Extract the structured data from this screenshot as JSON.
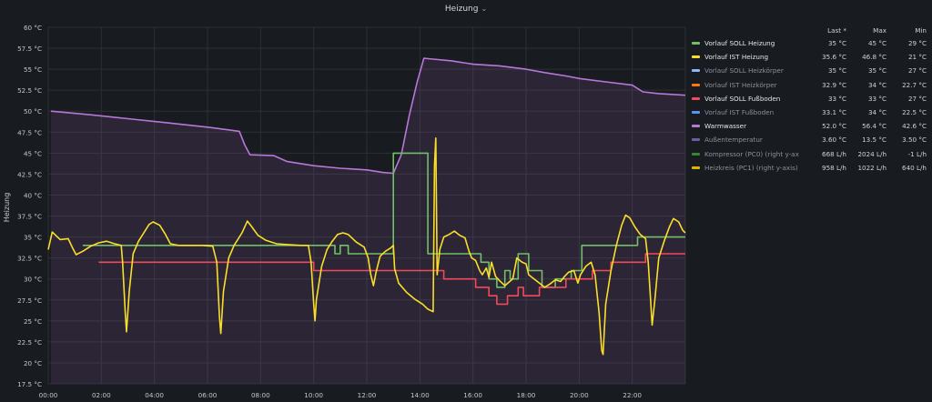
{
  "panel": {
    "title": "Heizung"
  },
  "legend": {
    "col_last": "Last *",
    "col_max": "Max",
    "col_min": "Min",
    "rows": [
      {
        "name": "Vorlauf SOLL Heizung",
        "color": "#73bf69",
        "last": "35 °C",
        "max": "45 °C",
        "min": "29 °C",
        "dim": false
      },
      {
        "name": "Vorlauf IST Heizung",
        "color": "#fade2a",
        "last": "35.6 °C",
        "max": "46.8 °C",
        "min": "21 °C",
        "dim": false
      },
      {
        "name": "Vorlauf SOLL Heizkörper",
        "color": "#8ab8ff",
        "last": "35 °C",
        "max": "35 °C",
        "min": "27 °C",
        "dim": true
      },
      {
        "name": "Vorlauf IST Heizkörper",
        "color": "#ff780a",
        "last": "32.9 °C",
        "max": "34 °C",
        "min": "22.7 °C",
        "dim": true
      },
      {
        "name": "Vorlauf SOLL Fußboden",
        "color": "#f2495c",
        "last": "33 °C",
        "max": "33 °C",
        "min": "27 °C",
        "dim": false
      },
      {
        "name": "Vorlauf IST Fußboden",
        "color": "#5794f2",
        "last": "33.1 °C",
        "max": "34 °C",
        "min": "22.5 °C",
        "dim": true
      },
      {
        "name": "Warmwasser",
        "color": "#b877d9",
        "last": "52.0 °C",
        "max": "56.4 °C",
        "min": "42.6 °C",
        "dim": false
      },
      {
        "name": "Außentemperatur",
        "color": "#705da0",
        "last": "3.60 °C",
        "max": "13.5 °C",
        "min": "3.50 °C",
        "dim": true
      },
      {
        "name": "Kompressor (PC0) (right y-axis)",
        "color": "#37872d",
        "last": "668 L/h",
        "max": "2024 L/h",
        "min": "-1 L/h",
        "dim": true
      },
      {
        "name": "Heizkreis (PC1) (right y-axis)",
        "color": "#e0b400",
        "last": "958 L/h",
        "max": "1022 L/h",
        "min": "640 L/h",
        "dim": true
      }
    ]
  },
  "chart_data": {
    "type": "line",
    "ylabel": "Heizung",
    "ylim": [
      17.5,
      60
    ],
    "xlim": [
      0,
      24
    ],
    "y_ticks": [
      "17.5 °C",
      "20 °C",
      "22.5 °C",
      "25 °C",
      "27.5 °C",
      "30 °C",
      "32.5 °C",
      "35 °C",
      "37.5 °C",
      "40 °C",
      "42.5 °C",
      "45 °C",
      "47.5 °C",
      "50 °C",
      "52.5 °C",
      "55 °C",
      "57.5 °C",
      "60 °C"
    ],
    "x_ticks": [
      "00:00",
      "02:00",
      "04:00",
      "06:00",
      "08:00",
      "10:00",
      "12:00",
      "14:00",
      "16:00",
      "18:00",
      "20:00",
      "22:00"
    ],
    "grid": true,
    "legend_position": "right",
    "series": [
      {
        "name": "Warmwasser",
        "color": "#b877d9",
        "fill": true,
        "points": [
          [
            0.1,
            50.0
          ],
          [
            1.5,
            49.6
          ],
          [
            3.0,
            49.1
          ],
          [
            4.5,
            48.6
          ],
          [
            6.0,
            48.1
          ],
          [
            7.2,
            47.6
          ],
          [
            7.4,
            46.0
          ],
          [
            7.6,
            44.8
          ],
          [
            8.5,
            44.7
          ],
          [
            9.0,
            44.0
          ],
          [
            10.0,
            43.5
          ],
          [
            11.0,
            43.2
          ],
          [
            12.0,
            43.0
          ],
          [
            12.6,
            42.7
          ],
          [
            13.0,
            42.6
          ],
          [
            13.3,
            44.8
          ],
          [
            13.6,
            49.5
          ],
          [
            13.9,
            53.5
          ],
          [
            14.15,
            56.3
          ],
          [
            14.5,
            56.2
          ],
          [
            15.2,
            56.0
          ],
          [
            16.0,
            55.6
          ],
          [
            17.0,
            55.4
          ],
          [
            18.0,
            55.0
          ],
          [
            18.7,
            54.6
          ],
          [
            19.5,
            54.2
          ],
          [
            20.0,
            53.9
          ],
          [
            21.0,
            53.5
          ],
          [
            22.0,
            53.1
          ],
          [
            22.4,
            52.3
          ],
          [
            23.0,
            52.1
          ],
          [
            24.0,
            51.9
          ]
        ]
      },
      {
        "name": "Vorlauf SOLL Heizung",
        "color": "#73bf69",
        "fill": false,
        "points": [
          [
            1.3,
            34
          ],
          [
            10.8,
            34
          ],
          [
            10.8,
            33
          ],
          [
            11.0,
            33
          ],
          [
            11.0,
            34
          ],
          [
            11.3,
            34
          ],
          [
            11.3,
            33
          ],
          [
            13.0,
            33
          ],
          [
            13.0,
            45
          ],
          [
            14.3,
            45
          ],
          [
            14.3,
            33
          ],
          [
            16.3,
            33
          ],
          [
            16.3,
            32
          ],
          [
            16.6,
            32
          ],
          [
            16.6,
            30
          ],
          [
            16.9,
            30
          ],
          [
            16.9,
            29
          ],
          [
            17.2,
            29
          ],
          [
            17.2,
            31
          ],
          [
            17.4,
            31
          ],
          [
            17.4,
            30
          ],
          [
            17.7,
            30
          ],
          [
            17.7,
            33
          ],
          [
            18.1,
            33
          ],
          [
            18.1,
            31
          ],
          [
            18.6,
            31
          ],
          [
            18.6,
            29
          ],
          [
            19.1,
            29
          ],
          [
            19.1,
            30
          ],
          [
            19.7,
            30
          ],
          [
            19.7,
            31
          ],
          [
            20.1,
            31
          ],
          [
            20.1,
            34
          ],
          [
            22.2,
            34
          ],
          [
            22.2,
            35
          ],
          [
            24.0,
            35
          ]
        ]
      },
      {
        "name": "Vorlauf SOLL Fußboden",
        "color": "#f2495c",
        "fill": false,
        "points": [
          [
            1.9,
            32
          ],
          [
            10.0,
            32
          ],
          [
            10.0,
            31
          ],
          [
            14.9,
            31
          ],
          [
            14.9,
            30
          ],
          [
            16.1,
            30
          ],
          [
            16.1,
            29
          ],
          [
            16.6,
            29
          ],
          [
            16.6,
            28
          ],
          [
            16.9,
            28
          ],
          [
            16.9,
            27
          ],
          [
            17.3,
            27
          ],
          [
            17.3,
            28
          ],
          [
            17.7,
            28
          ],
          [
            17.7,
            29
          ],
          [
            17.9,
            29
          ],
          [
            17.9,
            28
          ],
          [
            18.5,
            28
          ],
          [
            18.5,
            29
          ],
          [
            19.5,
            29
          ],
          [
            19.5,
            30
          ],
          [
            20.5,
            30
          ],
          [
            20.5,
            31
          ],
          [
            21.2,
            31
          ],
          [
            21.2,
            32
          ],
          [
            22.5,
            32
          ],
          [
            22.5,
            33
          ],
          [
            24.0,
            33
          ]
        ]
      },
      {
        "name": "Vorlauf IST Heizung",
        "color": "#fade2a",
        "fill": false,
        "points": [
          [
            0.0,
            33.5
          ],
          [
            0.15,
            35.6
          ],
          [
            0.45,
            34.7
          ],
          [
            0.75,
            34.8
          ],
          [
            0.9,
            33.8
          ],
          [
            1.05,
            32.9
          ],
          [
            1.3,
            33.3
          ],
          [
            1.6,
            33.9
          ],
          [
            1.9,
            34.3
          ],
          [
            2.2,
            34.5
          ],
          [
            2.5,
            34.2
          ],
          [
            2.75,
            34.0
          ],
          [
            2.8,
            32.0
          ],
          [
            2.9,
            26.0
          ],
          [
            2.95,
            23.7
          ],
          [
            3.05,
            28.5
          ],
          [
            3.2,
            33.0
          ],
          [
            3.4,
            34.5
          ],
          [
            3.6,
            35.5
          ],
          [
            3.8,
            36.5
          ],
          [
            3.95,
            36.8
          ],
          [
            4.2,
            36.4
          ],
          [
            4.4,
            35.4
          ],
          [
            4.6,
            34.2
          ],
          [
            4.9,
            34.0
          ],
          [
            5.3,
            34.0
          ],
          [
            5.8,
            34.0
          ],
          [
            6.2,
            33.9
          ],
          [
            6.35,
            32.0
          ],
          [
            6.45,
            25.5
          ],
          [
            6.5,
            23.5
          ],
          [
            6.6,
            28.5
          ],
          [
            6.8,
            32.5
          ],
          [
            7.0,
            34.0
          ],
          [
            7.3,
            35.5
          ],
          [
            7.5,
            36.9
          ],
          [
            7.65,
            36.3
          ],
          [
            7.9,
            35.2
          ],
          [
            8.2,
            34.6
          ],
          [
            8.6,
            34.2
          ],
          [
            9.0,
            34.1
          ],
          [
            9.5,
            34.0
          ],
          [
            9.8,
            34.0
          ],
          [
            9.9,
            32.0
          ],
          [
            10.0,
            27.0
          ],
          [
            10.05,
            25.0
          ],
          [
            10.1,
            27.5
          ],
          [
            10.3,
            31.5
          ],
          [
            10.5,
            33.5
          ],
          [
            10.7,
            34.5
          ],
          [
            10.9,
            35.3
          ],
          [
            11.1,
            35.5
          ],
          [
            11.3,
            35.3
          ],
          [
            11.6,
            34.4
          ],
          [
            11.9,
            33.8
          ],
          [
            12.05,
            32.5
          ],
          [
            12.15,
            30.5
          ],
          [
            12.25,
            29.2
          ],
          [
            12.35,
            30.8
          ],
          [
            12.5,
            32.7
          ],
          [
            12.7,
            33.3
          ],
          [
            12.9,
            33.7
          ],
          [
            13.0,
            34.0
          ],
          [
            13.05,
            31.2
          ],
          [
            13.2,
            29.5
          ],
          [
            13.5,
            28.4
          ],
          [
            13.8,
            27.6
          ],
          [
            14.1,
            27.0
          ],
          [
            14.3,
            26.4
          ],
          [
            14.5,
            26.1
          ],
          [
            14.55,
            43.5
          ],
          [
            14.6,
            46.8
          ],
          [
            14.65,
            30.5
          ],
          [
            14.75,
            33.5
          ],
          [
            14.9,
            35.0
          ],
          [
            15.1,
            35.3
          ],
          [
            15.3,
            35.7
          ],
          [
            15.5,
            35.2
          ],
          [
            15.7,
            34.9
          ],
          [
            15.85,
            33.3
          ],
          [
            15.95,
            32.5
          ],
          [
            16.1,
            32.2
          ],
          [
            16.25,
            31.0
          ],
          [
            16.35,
            30.5
          ],
          [
            16.5,
            31.3
          ],
          [
            16.6,
            30.2
          ],
          [
            16.7,
            32.0
          ],
          [
            16.85,
            30.3
          ],
          [
            17.0,
            29.8
          ],
          [
            17.2,
            29.2
          ],
          [
            17.35,
            29.6
          ],
          [
            17.5,
            30.0
          ],
          [
            17.65,
            32.5
          ],
          [
            17.85,
            32.0
          ],
          [
            18.0,
            31.8
          ],
          [
            18.1,
            30.5
          ],
          [
            18.3,
            30.0
          ],
          [
            18.5,
            29.5
          ],
          [
            18.7,
            29.0
          ],
          [
            18.9,
            29.4
          ],
          [
            19.1,
            29.9
          ],
          [
            19.3,
            29.7
          ],
          [
            19.45,
            30.3
          ],
          [
            19.6,
            30.8
          ],
          [
            19.8,
            31.0
          ],
          [
            19.95,
            29.5
          ],
          [
            20.05,
            30.5
          ],
          [
            20.25,
            31.5
          ],
          [
            20.45,
            32.0
          ],
          [
            20.6,
            30.5
          ],
          [
            20.75,
            26.0
          ],
          [
            20.85,
            21.5
          ],
          [
            20.9,
            21.0
          ],
          [
            21.0,
            27.0
          ],
          [
            21.2,
            31.0
          ],
          [
            21.4,
            34.0
          ],
          [
            21.6,
            36.4
          ],
          [
            21.75,
            37.6
          ],
          [
            21.9,
            37.3
          ],
          [
            22.1,
            36.2
          ],
          [
            22.3,
            35.3
          ],
          [
            22.5,
            34.8
          ],
          [
            22.6,
            32.0
          ],
          [
            22.7,
            27.0
          ],
          [
            22.75,
            24.5
          ],
          [
            22.85,
            27.5
          ],
          [
            23.0,
            32.5
          ],
          [
            23.2,
            34.5
          ],
          [
            23.4,
            36.2
          ],
          [
            23.55,
            37.2
          ],
          [
            23.75,
            36.8
          ],
          [
            23.9,
            35.8
          ],
          [
            24.0,
            35.5
          ]
        ]
      }
    ]
  }
}
